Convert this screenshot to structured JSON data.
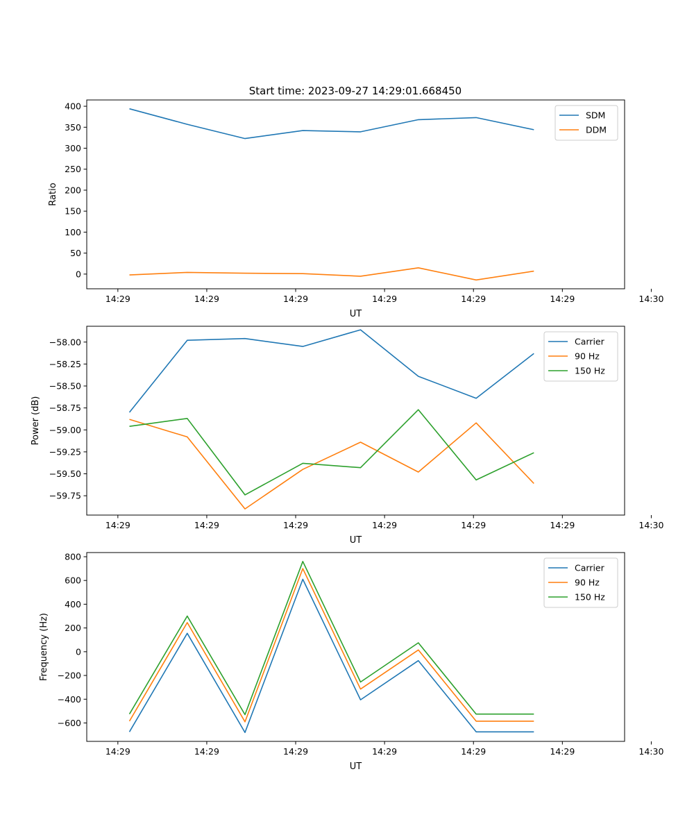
{
  "figure": {
    "title": "Start time: 2023-09-27 14:29:01.668450"
  },
  "chart_data": [
    {
      "type": "line",
      "xlabel": "UT",
      "ylabel": "Ratio",
      "x_tick_labels": [
        "14:29",
        "14:29",
        "14:29",
        "14:29",
        "14:29",
        "14:29",
        "14:30"
      ],
      "y_ticks": [
        0,
        50,
        100,
        150,
        200,
        250,
        300,
        350,
        400
      ],
      "ylim": [
        -35,
        415
      ],
      "xlim": [
        -0.35,
        5.7
      ],
      "x": [
        0.13,
        0.78,
        1.43,
        2.08,
        2.73,
        3.38,
        4.03,
        4.68
      ],
      "legend_position": "top-right",
      "grid": false,
      "series": [
        {
          "name": "SDM",
          "color": "#1f77b4",
          "values": [
            394,
            357,
            323,
            342,
            339,
            368,
            373,
            344
          ]
        },
        {
          "name": "DDM",
          "color": "#ff7f0e",
          "values": [
            -2,
            4,
            2,
            1,
            -5,
            15,
            -14,
            7
          ]
        }
      ]
    },
    {
      "type": "line",
      "xlabel": "UT",
      "ylabel": "Power (dB)",
      "x_tick_labels": [
        "14:29",
        "14:29",
        "14:29",
        "14:29",
        "14:29",
        "14:29",
        "14:30"
      ],
      "y_ticks": [
        -59.75,
        -59.5,
        -59.25,
        -59.0,
        -58.75,
        -58.5,
        -58.25,
        -58.0
      ],
      "y_tick_labels": [
        "−59.75",
        "−59.50",
        "−59.25",
        "−59.00",
        "−58.75",
        "−58.50",
        "−58.25",
        "−58.00"
      ],
      "ylim": [
        -59.97,
        -57.82
      ],
      "xlim": [
        -0.35,
        5.7
      ],
      "x": [
        0.13,
        0.78,
        1.43,
        2.08,
        2.73,
        3.38,
        4.03,
        4.68
      ],
      "legend_position": "top-right",
      "grid": false,
      "series": [
        {
          "name": "Carrier",
          "color": "#1f77b4",
          "values": [
            -58.8,
            -57.98,
            -57.96,
            -58.05,
            -57.86,
            -58.39,
            -58.64,
            -58.13
          ]
        },
        {
          "name": "90 Hz",
          "color": "#ff7f0e",
          "values": [
            -58.88,
            -59.08,
            -59.9,
            -59.45,
            -59.14,
            -59.48,
            -58.92,
            -59.61
          ]
        },
        {
          "name": "150 Hz",
          "color": "#2ca02c",
          "values": [
            -58.96,
            -58.87,
            -59.74,
            -59.38,
            -59.43,
            -58.77,
            -59.57,
            -59.26
          ]
        }
      ]
    },
    {
      "type": "line",
      "xlabel": "UT",
      "ylabel": "Frequency (Hz)",
      "x_tick_labels": [
        "14:29",
        "14:29",
        "14:29",
        "14:29",
        "14:29",
        "14:29",
        "14:30"
      ],
      "y_ticks": [
        -600,
        -400,
        -200,
        0,
        200,
        400,
        600,
        800
      ],
      "y_tick_labels": [
        "−600",
        "−400",
        "−200",
        "0",
        "200",
        "400",
        "600",
        "800"
      ],
      "ylim": [
        -755,
        835
      ],
      "xlim": [
        -0.35,
        5.7
      ],
      "x": [
        0.13,
        0.78,
        1.43,
        2.08,
        2.73,
        3.38,
        4.03,
        4.68
      ],
      "legend_position": "top-right",
      "grid": false,
      "series": [
        {
          "name": "Carrier",
          "color": "#1f77b4",
          "values": [
            -675,
            155,
            -680,
            610,
            -405,
            -75,
            -675,
            -675
          ]
        },
        {
          "name": "90 Hz",
          "color": "#ff7f0e",
          "values": [
            -585,
            245,
            -590,
            700,
            -315,
            15,
            -585,
            -585
          ]
        },
        {
          "name": "150 Hz",
          "color": "#2ca02c",
          "values": [
            -525,
            300,
            -530,
            760,
            -255,
            75,
            -525,
            -525
          ]
        }
      ]
    }
  ]
}
